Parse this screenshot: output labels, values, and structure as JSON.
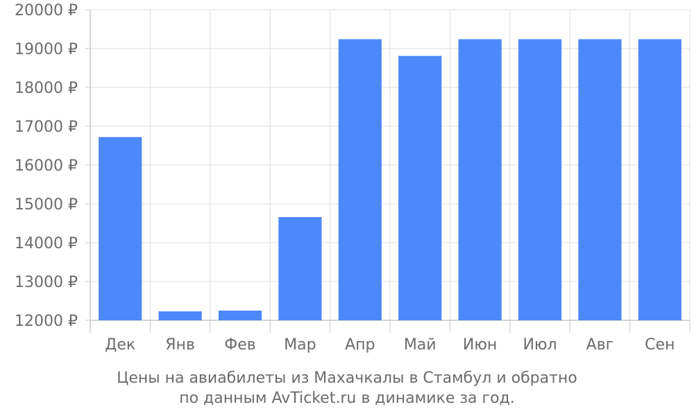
{
  "chart_data": {
    "type": "bar",
    "categories": [
      "Дек",
      "Янв",
      "Фев",
      "Мар",
      "Апр",
      "Май",
      "Июн",
      "Июл",
      "Авг",
      "Сен"
    ],
    "values": [
      16720,
      12230,
      12250,
      14660,
      19240,
      18810,
      19240,
      19240,
      19240,
      19240
    ],
    "ylim": [
      12000,
      20000
    ],
    "yticks": [
      12000,
      13000,
      14000,
      15000,
      16000,
      17000,
      18000,
      19000,
      20000
    ],
    "ytick_labels": [
      "12000 ₽",
      "13000 ₽",
      "14000 ₽",
      "15000 ₽",
      "16000 ₽",
      "17000 ₽",
      "18000 ₽",
      "19000 ₽",
      "20000 ₽"
    ],
    "grid": true,
    "bar_color": "#4d88fa",
    "caption_line1": "Цены на авиабилеты из Махачкалы в Стамбул и обратно",
    "caption_line2": "по данным AvTicket.ru в динамике за год."
  }
}
